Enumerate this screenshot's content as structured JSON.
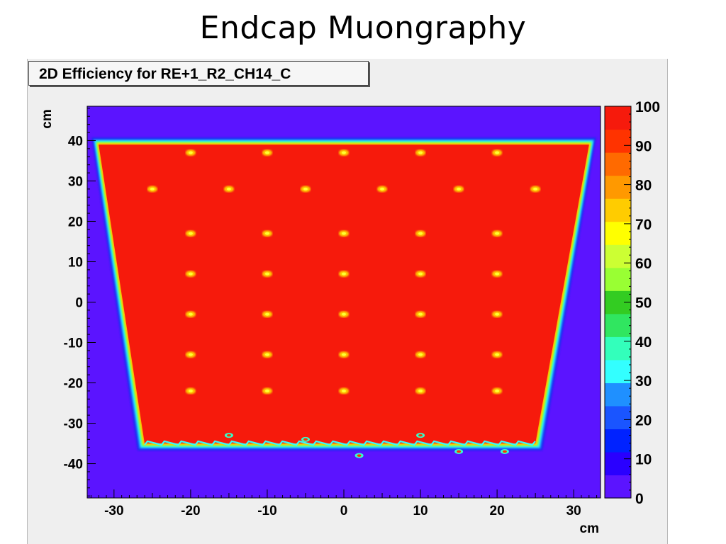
{
  "slide": {
    "title": "Endcap Muongraphy"
  },
  "colors": {
    "background_eff": "#5b14ff",
    "plateau": "#f61a0c",
    "border": "#1a2cf0",
    "canvas": "#efefef"
  },
  "chart_data": {
    "type": "heatmap",
    "title": "2D Efficiency for RE+1_R2_CH14_C",
    "xlabel": "cm",
    "ylabel": "cm",
    "xlim": [
      -33.5,
      33.5
    ],
    "ylim": [
      -48.5,
      48.5
    ],
    "x_ticks": [
      -30,
      -20,
      -10,
      0,
      10,
      20,
      30
    ],
    "y_ticks": [
      -40,
      -30,
      -20,
      -10,
      0,
      10,
      20,
      30,
      40
    ],
    "z_range": [
      0,
      100
    ],
    "z_ticks": [
      0,
      10,
      20,
      30,
      40,
      50,
      60,
      70,
      80,
      90,
      100
    ],
    "z_palette": [
      "#5b14ff",
      "#2a00ff",
      "#0022ff",
      "#1a55ff",
      "#1f90ff",
      "#33ffff",
      "#33ffbb",
      "#30e660",
      "#33cc22",
      "#99ff33",
      "#ccff33",
      "#ffff00",
      "#ffcc00",
      "#ff9900",
      "#ff6a00",
      "#ff3300",
      "#f61a0c"
    ],
    "efficient_region": {
      "top_y": 39,
      "bottom_y": -35,
      "top_x": [
        -32,
        32
      ],
      "bottom_x": [
        -26,
        25
      ],
      "efficiency": 100
    },
    "background_efficiency": 0,
    "hot_spots": [
      {
        "x": -20,
        "y": 37
      },
      {
        "x": -10,
        "y": 37
      },
      {
        "x": 0,
        "y": 37
      },
      {
        "x": 10,
        "y": 37
      },
      {
        "x": 20,
        "y": 37
      },
      {
        "x": -25,
        "y": 28
      },
      {
        "x": -15,
        "y": 28
      },
      {
        "x": -5,
        "y": 28
      },
      {
        "x": 5,
        "y": 28
      },
      {
        "x": 15,
        "y": 28
      },
      {
        "x": 25,
        "y": 28
      },
      {
        "x": -20,
        "y": 17
      },
      {
        "x": -10,
        "y": 17
      },
      {
        "x": 0,
        "y": 17
      },
      {
        "x": 10,
        "y": 17
      },
      {
        "x": 20,
        "y": 17
      },
      {
        "x": -20,
        "y": 7
      },
      {
        "x": -10,
        "y": 7
      },
      {
        "x": 0,
        "y": 7
      },
      {
        "x": 10,
        "y": 7
      },
      {
        "x": 20,
        "y": 7
      },
      {
        "x": -20,
        "y": -3
      },
      {
        "x": -10,
        "y": -3
      },
      {
        "x": 0,
        "y": -3
      },
      {
        "x": 10,
        "y": -3
      },
      {
        "x": 20,
        "y": -3
      },
      {
        "x": -20,
        "y": -13
      },
      {
        "x": -10,
        "y": -13
      },
      {
        "x": 0,
        "y": -13
      },
      {
        "x": 10,
        "y": -13
      },
      {
        "x": 20,
        "y": -13
      },
      {
        "x": -20,
        "y": -22
      },
      {
        "x": -10,
        "y": -22
      },
      {
        "x": 0,
        "y": -22
      },
      {
        "x": 10,
        "y": -22
      },
      {
        "x": 20,
        "y": -22
      }
    ],
    "low_spots": [
      {
        "x": -15,
        "y": -33
      },
      {
        "x": -5,
        "y": -34
      },
      {
        "x": 10,
        "y": -33
      },
      {
        "x": 15,
        "y": -37
      },
      {
        "x": 21,
        "y": -37
      },
      {
        "x": 2,
        "y": -38
      }
    ]
  }
}
